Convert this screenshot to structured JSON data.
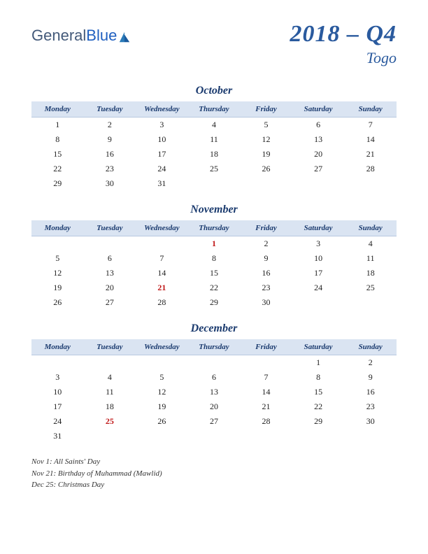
{
  "logo": {
    "part1": "General",
    "part2": "Blue"
  },
  "title": {
    "quarter": "2018 – Q4",
    "country": "Togo"
  },
  "weekdays": [
    "Monday",
    "Tuesday",
    "Wednesday",
    "Thursday",
    "Friday",
    "Saturday",
    "Sunday"
  ],
  "header_bg": "#dae4f2",
  "header_text_color": "#1a3a6e",
  "holiday_color": "#c01818",
  "months": [
    {
      "name": "October",
      "startCol": 0,
      "days": 31,
      "holidays": []
    },
    {
      "name": "November",
      "startCol": 3,
      "days": 30,
      "holidays": [
        1,
        21
      ]
    },
    {
      "name": "December",
      "startCol": 5,
      "days": 31,
      "holidays": [
        25
      ]
    }
  ],
  "holiday_notes": [
    "Nov 1: All Saints' Day",
    "Nov 21: Birthday of Muhammad (Mawlid)",
    "Dec 25: Christmas Day"
  ]
}
